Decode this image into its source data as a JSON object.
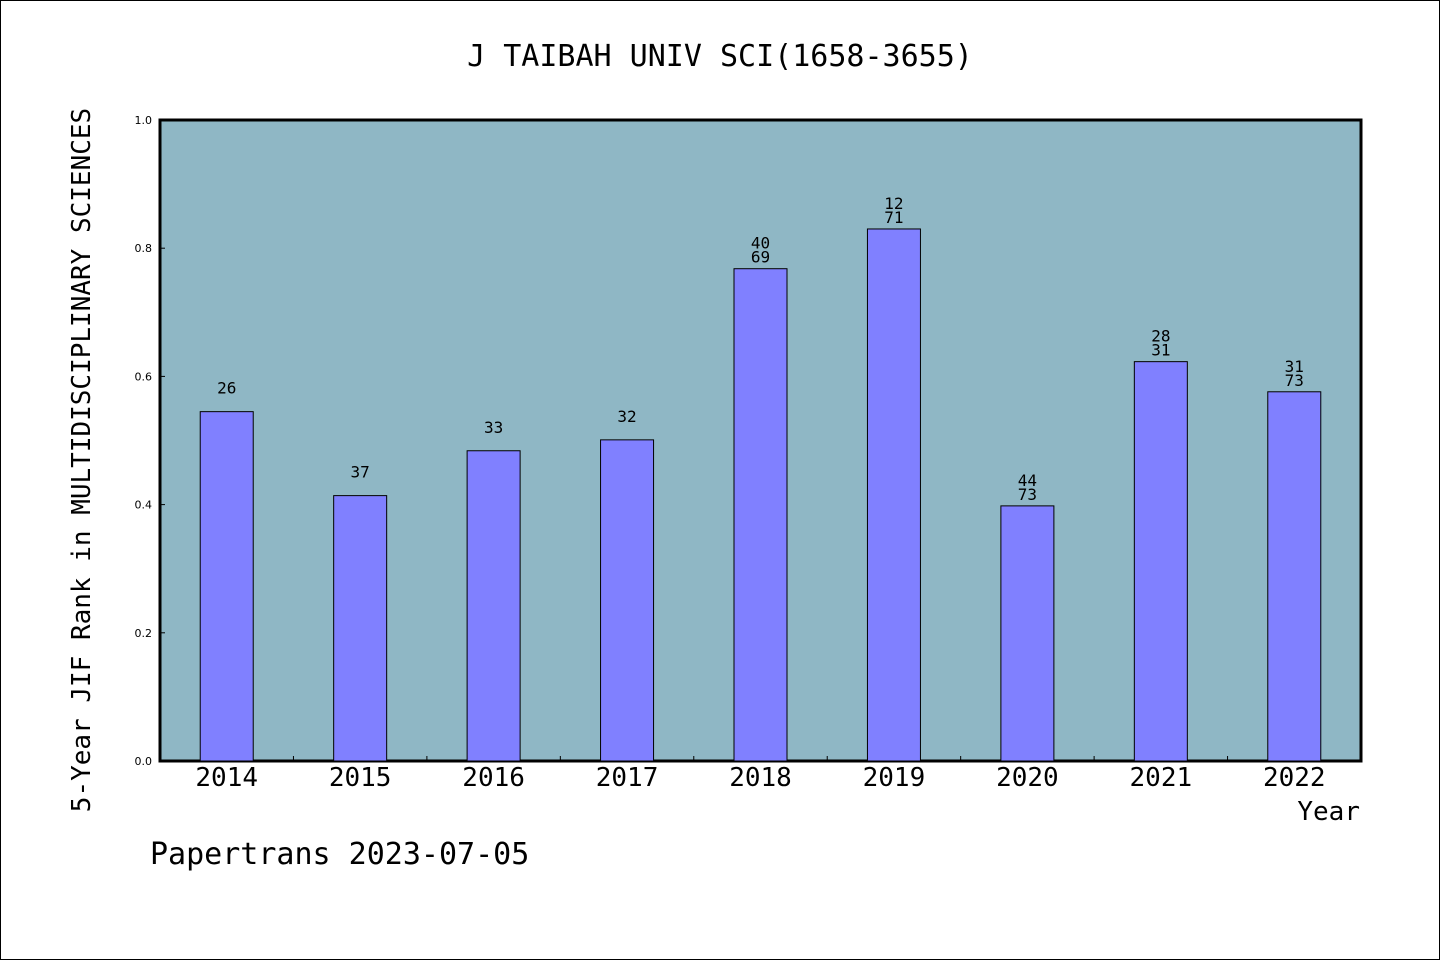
{
  "chart_data": {
    "type": "bar",
    "title": "J TAIBAH UNIV SCI(1658-3655)",
    "xlabel": "Year",
    "ylabel": "5-Year JIF Rank in MULTIDISCIPLINARY SCIENCES",
    "ylim": [
      0,
      1.0
    ],
    "yticks": [
      "0.0",
      "0.2",
      "0.4",
      "0.6",
      "0.8",
      "1.0"
    ],
    "categories": [
      "2014",
      "2015",
      "2016",
      "2017",
      "2018",
      "2019",
      "2020",
      "2021",
      "2022"
    ],
    "values": [
      0.545,
      0.414,
      0.484,
      0.501,
      0.768,
      0.83,
      0.398,
      0.623,
      0.576
    ],
    "bar_labels": [
      [
        "26"
      ],
      [
        "37"
      ],
      [
        "33"
      ],
      [
        "32"
      ],
      [
        "40",
        "69"
      ],
      [
        "12",
        "71"
      ],
      [
        "44",
        "73"
      ],
      [
        "28",
        "31"
      ],
      [
        "31",
        "73"
      ]
    ],
    "colors": {
      "plot_bg": "#8fb7c5",
      "bar": "#8080ff",
      "bar_edge": "#000000"
    }
  },
  "footer": "Papertrans 2023-07-05"
}
